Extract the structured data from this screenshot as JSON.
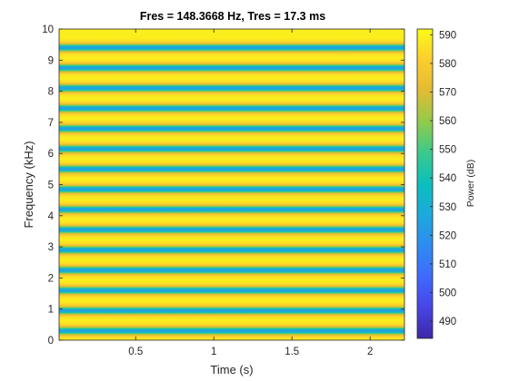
{
  "chart_data": {
    "type": "heatmap",
    "title": "Fres = 148.3668 Hz, Tres = 17.3 ms",
    "xlabel": "Time (s)",
    "ylabel": "Frequency (kHz)",
    "xlim": [
      0.01,
      2.22
    ],
    "ylim": [
      0,
      10
    ],
    "xticks": [
      "0.5",
      "1",
      "1.5",
      "2"
    ],
    "xtick_values": [
      0.5,
      1,
      1.5,
      2
    ],
    "yticks": [
      "0",
      "1",
      "2",
      "3",
      "4",
      "5",
      "6",
      "7",
      "8",
      "9",
      "10"
    ],
    "ytick_values": [
      0,
      1,
      2,
      3,
      4,
      5,
      6,
      7,
      8,
      9,
      10
    ],
    "colormap": "parula",
    "colorbar": {
      "label": "Power (dB)",
      "range": [
        484,
        592
      ],
      "ticks": [
        "490",
        "500",
        "510",
        "520",
        "530",
        "540",
        "550",
        "560",
        "570",
        "580",
        "590"
      ],
      "tick_values": [
        490,
        500,
        510,
        520,
        530,
        540,
        550,
        560,
        570,
        580,
        590
      ]
    },
    "band_centers_khz": [
      0.3,
      0.95,
      1.6,
      2.25,
      2.9,
      3.55,
      4.2,
      4.85,
      5.5,
      6.15,
      6.8,
      7.45,
      8.1,
      8.75,
      9.4
    ],
    "band_min_db": 535,
    "band_max_db": 590,
    "band_period_khz": 0.65
  }
}
